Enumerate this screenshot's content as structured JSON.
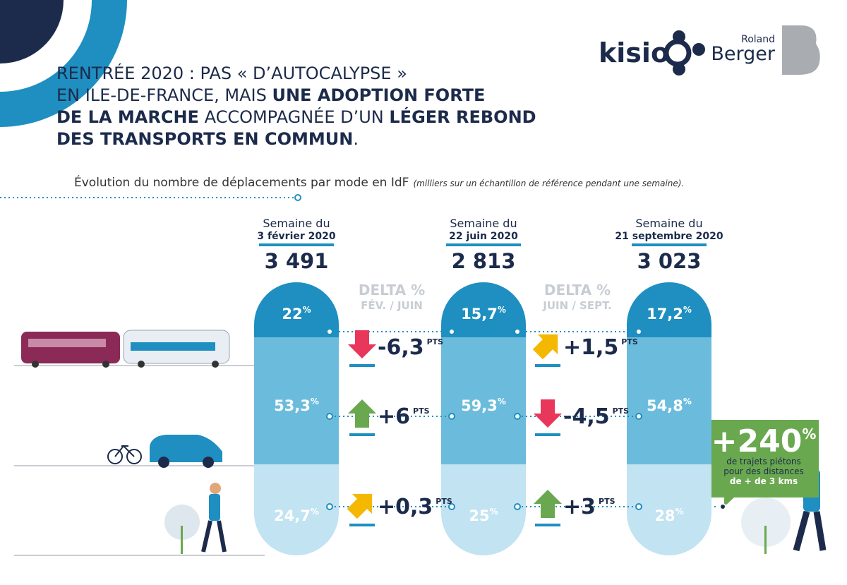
{
  "logos": {
    "kisio": "kisio",
    "roland": "Roland",
    "berger": "Berger"
  },
  "title": {
    "lines": [
      [
        {
          "text": "RENTRÉE 2020 : PAS « D’AUTOCALYPSE »",
          "bold": false
        }
      ],
      [
        {
          "text": "EN ILE-DE-FRANCE, MAIS ",
          "bold": false
        },
        {
          "text": "UNE ADOPTION FORTE",
          "bold": true
        }
      ],
      [
        {
          "text": "DE LA MARCHE",
          "bold": true
        },
        {
          "text": " ACCOMPAGNÉE D’UN ",
          "bold": false
        },
        {
          "text": "LÉGER REBOND",
          "bold": true
        }
      ],
      [
        {
          "text": "DES TRANSPORTS EN COMMUN",
          "bold": true
        },
        {
          "text": ".",
          "bold": false
        }
      ]
    ]
  },
  "subtitle": {
    "text": "Évolution du nombre de déplacements par mode en IdF",
    "note": "(milliers sur un échantillon de référence pendant une semaine)."
  },
  "percent_sign": "%",
  "pts_label": "PTS",
  "columns": [
    {
      "heading": "Semaine du",
      "date": "3 février 2020",
      "total": "3 491",
      "segments": [
        "22",
        "53,3",
        "24,7"
      ]
    },
    {
      "heading": "Semaine du",
      "date": "22 juin 2020",
      "total": "2 813",
      "segments": [
        "15,7",
        "59,3",
        "25"
      ]
    },
    {
      "heading": "Semaine du",
      "date": "21 septembre 2020",
      "total": "3 023",
      "segments": [
        "17,2",
        "54,8",
        "28"
      ]
    }
  ],
  "deltas": [
    {
      "header": "DELTA %",
      "period": "FÉV. / JUIN",
      "changes": [
        {
          "text": "-6,3",
          "direction": "down"
        },
        {
          "text": "+6",
          "direction": "up"
        },
        {
          "text": "+0,3",
          "direction": "diagonal"
        }
      ]
    },
    {
      "header": "DELTA %",
      "period": "JUIN / SEPT.",
      "changes": [
        {
          "text": "+1,5",
          "direction": "diagonal"
        },
        {
          "text": "-4,5",
          "direction": "down"
        },
        {
          "text": "+3",
          "direction": "up"
        }
      ]
    }
  ],
  "callout": {
    "value": "+240",
    "lines": [
      "de trajets piétons",
      "pour des distances",
      "de + de 3 kms"
    ]
  }
}
